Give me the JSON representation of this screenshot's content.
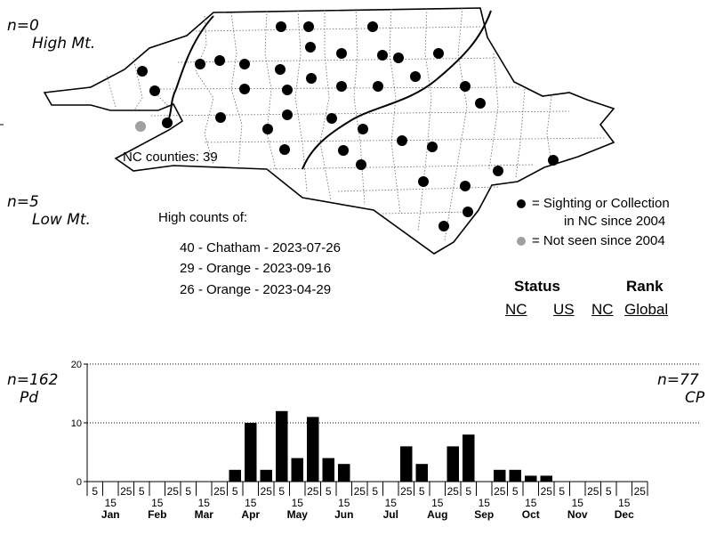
{
  "regions": {
    "high_mt": {
      "n": "n=0",
      "label": "High Mt."
    },
    "low_mt": {
      "n": "n=5",
      "label": "Low Mt."
    },
    "piedmont": {
      "n": "n=162",
      "label": "Pd"
    },
    "coastal_plain": {
      "n": "n=77",
      "label": "CP"
    }
  },
  "map": {
    "counties_label": "NC counties: 39",
    "legend": {
      "recent": "= Sighting or Collection",
      "recent_line2": "in NC since 2004",
      "old": "= Not seen since 2004"
    },
    "colors": {
      "recent": "#000000",
      "old": "#a0a0a0",
      "outline": "#000000"
    }
  },
  "high_counts": {
    "title": "High counts of:",
    "items": [
      "40 - Chatham - 2023-07-26",
      "29 - Orange - 2023-09-16",
      "26 - Orange - 2023-04-29"
    ]
  },
  "status_rank": {
    "status_title": "Status",
    "rank_title": "Rank",
    "status_nc": "NC",
    "status_us": "US",
    "rank_nc": "NC",
    "rank_global": "Global"
  },
  "chart_data": {
    "type": "bar",
    "ylim": [
      0,
      20
    ],
    "yticks": [
      0,
      10,
      20
    ],
    "grid": "dotted horizontal at 10 and 20",
    "months": [
      "Jan",
      "Feb",
      "Mar",
      "Apr",
      "May",
      "Jun",
      "Jul",
      "Aug",
      "Sep",
      "Oct",
      "Nov",
      "Dec"
    ],
    "period_labels_top": [
      "5",
      "25"
    ],
    "period_labels_bottom": [
      "15"
    ],
    "values": [
      0,
      0,
      0,
      0,
      0,
      0,
      0,
      0,
      0,
      2,
      10,
      2,
      12,
      4,
      11,
      4,
      3,
      0,
      0,
      0,
      6,
      3,
      0,
      6,
      8,
      0,
      2,
      2,
      1,
      1,
      0,
      0,
      0,
      0,
      0,
      0
    ],
    "bar_color": "#000000"
  }
}
